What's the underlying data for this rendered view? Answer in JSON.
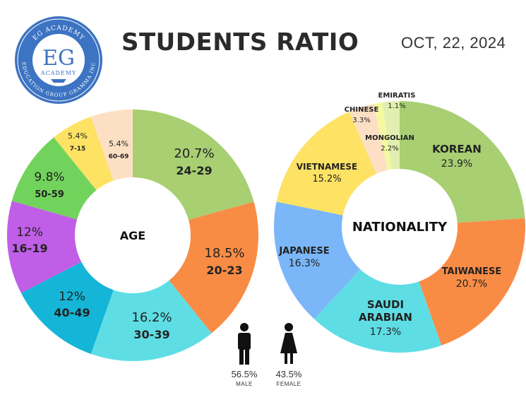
{
  "header": {
    "title": "STUDENTS RATIO",
    "date": "OCT, 22, 2024"
  },
  "logo": {
    "top_text": "EG ACADEMY",
    "monogram": "EG",
    "sub_text": "ACADEMY",
    "bottom_text": "EDUCATION GROUP GRAMMA INC"
  },
  "colors": {
    "green": "#a8cf72",
    "orange": "#f98c45",
    "cyan": "#5fdde5",
    "blue": "#14b5d6",
    "purple": "#c05ee8",
    "lime": "#72d35c",
    "yellow": "#fde264",
    "peach": "#fde0c4",
    "lightblue": "#7ab6f8",
    "pale_yellow": "#f4f9a0",
    "logo_blue": "#3c73c2"
  },
  "chart_data": [
    {
      "type": "pie",
      "center_label": "AGE",
      "slices": [
        {
          "label": "24-29",
          "value": 20.7,
          "value_text": "20.7%",
          "color": "#a8cf72"
        },
        {
          "label": "20-23",
          "value": 18.5,
          "value_text": "18.5%",
          "color": "#f98c45"
        },
        {
          "label": "30-39",
          "value": 16.2,
          "value_text": "16.2%",
          "color": "#5fdde5"
        },
        {
          "label": "40-49",
          "value": 12,
          "value_text": "12%",
          "color": "#14b5d6"
        },
        {
          "label": "16-19",
          "value": 12,
          "value_text": "12%",
          "color": "#c05ee8"
        },
        {
          "label": "50-59",
          "value": 9.8,
          "value_text": "9.8%",
          "color": "#72d35c"
        },
        {
          "label": "7-15",
          "value": 5.4,
          "value_text": "5.4%",
          "color": "#fde264"
        },
        {
          "label": "60-69",
          "value": 5.4,
          "value_text": "5.4%",
          "color": "#fde0c4"
        }
      ]
    },
    {
      "type": "pie",
      "center_label": "NATIONALITY",
      "slices": [
        {
          "label": "KOREAN",
          "value": 23.9,
          "value_text": "23.9%",
          "color": "#a8cf72"
        },
        {
          "label": "TAIWANESE",
          "value": 20.7,
          "value_text": "20.7%",
          "color": "#f98c45"
        },
        {
          "label": "SAUDI ARABIAN",
          "value": 17.3,
          "value_text": "17.3%",
          "color": "#5fdde5"
        },
        {
          "label": "JAPANESE",
          "value": 16.3,
          "value_text": "16.3%",
          "color": "#7ab6f8"
        },
        {
          "label": "VIETNAMESE",
          "value": 15.2,
          "value_text": "15.2%",
          "color": "#fde264"
        },
        {
          "label": "CHINESE",
          "value": 3.3,
          "value_text": "3.3%",
          "color": "#fde0c4"
        },
        {
          "label": "EMIRATIS",
          "value": 1.1,
          "value_text": "1.1%",
          "color": "#f4f9a0"
        },
        {
          "label": "MONGOLIAN",
          "value": 2.2,
          "value_text": "2.2%",
          "color": "#e2efb0"
        }
      ]
    }
  ],
  "gender": {
    "male": {
      "value_text": "56.5%",
      "label": "MALE"
    },
    "female": {
      "value_text": "43.5%",
      "label": "FEMALE"
    }
  }
}
